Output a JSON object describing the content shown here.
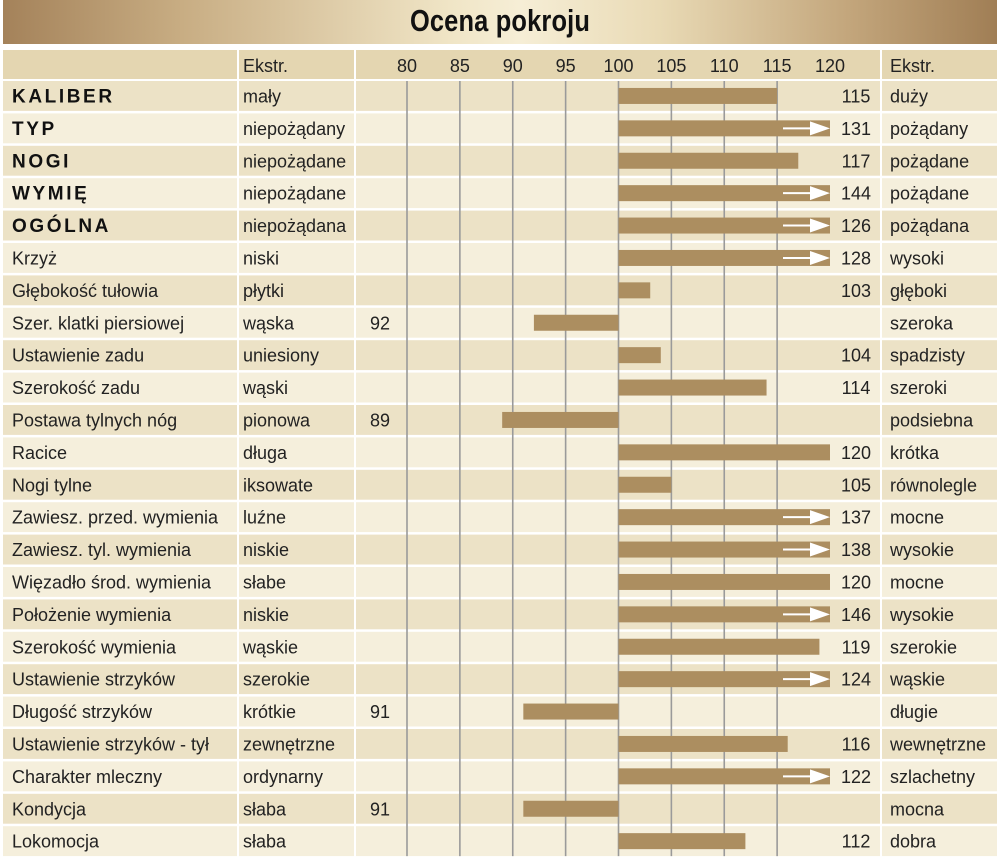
{
  "chart_data": {
    "type": "bar",
    "title": "Ocena pokroju",
    "header": {
      "left_extreme": "Ekstr.",
      "right_extreme": "Ekstr."
    },
    "xlim": [
      80,
      120
    ],
    "baseline": 100,
    "ticks": [
      80,
      85,
      90,
      95,
      100,
      105,
      110,
      115,
      120
    ],
    "arrow_color": "#ffffff",
    "bar_color": "#ac8e60",
    "rows": [
      {
        "name": "KALIBER",
        "bold": true,
        "low": "mały",
        "high": "duży",
        "value": 115
      },
      {
        "name": "TYP",
        "bold": true,
        "low": "niepożądany",
        "high": "pożądany",
        "value": 131
      },
      {
        "name": "NOGI",
        "bold": true,
        "low": "niepożądane",
        "high": "pożądane",
        "value": 117
      },
      {
        "name": "WYMIĘ",
        "bold": true,
        "low": "niepożądane",
        "high": "pożądane",
        "value": 144
      },
      {
        "name": "OGÓLNA",
        "bold": true,
        "low": "niepożądana",
        "high": "pożądana",
        "value": 126
      },
      {
        "name": "Krzyż",
        "bold": false,
        "low": "niski",
        "high": "wysoki",
        "value": 128
      },
      {
        "name": "Głębokość tułowia",
        "bold": false,
        "low": "płytki",
        "high": "głęboki",
        "value": 103
      },
      {
        "name": "Szer. klatki piersiowej",
        "bold": false,
        "low": "wąska",
        "high": "szeroka",
        "value": 92
      },
      {
        "name": "Ustawienie zadu",
        "bold": false,
        "low": "uniesiony",
        "high": "spadzisty",
        "value": 104
      },
      {
        "name": "Szerokość zadu",
        "bold": false,
        "low": "wąski",
        "high": "szeroki",
        "value": 114
      },
      {
        "name": "Postawa tylnych nóg",
        "bold": false,
        "low": "pionowa",
        "high": "podsiebna",
        "value": 89
      },
      {
        "name": "Racice",
        "bold": false,
        "low": "długa",
        "high": "krótka",
        "value": 120
      },
      {
        "name": "Nogi tylne",
        "bold": false,
        "low": "iksowate",
        "high": "równolegle",
        "value": 105
      },
      {
        "name": "Zawiesz. przed. wymienia",
        "bold": false,
        "low": "luźne",
        "high": "mocne",
        "value": 137
      },
      {
        "name": "Zawiesz. tyl. wymienia",
        "bold": false,
        "low": "niskie",
        "high": "wysokie",
        "value": 138
      },
      {
        "name": "Więzadło środ. wymienia",
        "bold": false,
        "low": "słabe",
        "high": "mocne",
        "value": 120
      },
      {
        "name": "Położenie wymienia",
        "bold": false,
        "low": "niskie",
        "high": "wysokie",
        "value": 146
      },
      {
        "name": "Szerokość wymienia",
        "bold": false,
        "low": "wąskie",
        "high": "szerokie",
        "value": 119
      },
      {
        "name": "Ustawienie strzyków",
        "bold": false,
        "low": "szerokie",
        "high": "wąskie",
        "value": 124
      },
      {
        "name": "Długość strzyków",
        "bold": false,
        "low": "krótkie",
        "high": "długie",
        "value": 91
      },
      {
        "name": "Ustawienie strzyków - tył",
        "bold": false,
        "low": "zewnętrzne",
        "high": "wewnętrzne",
        "value": 116
      },
      {
        "name": "Charakter mleczny",
        "bold": false,
        "low": "ordynarny",
        "high": "szlachetny",
        "value": 122
      },
      {
        "name": "Kondycja",
        "bold": false,
        "low": "słaba",
        "high": "mocna",
        "value": 91
      },
      {
        "name": "Lokomocja",
        "bold": false,
        "low": "słaba",
        "high": "dobra",
        "value": 112
      }
    ]
  }
}
